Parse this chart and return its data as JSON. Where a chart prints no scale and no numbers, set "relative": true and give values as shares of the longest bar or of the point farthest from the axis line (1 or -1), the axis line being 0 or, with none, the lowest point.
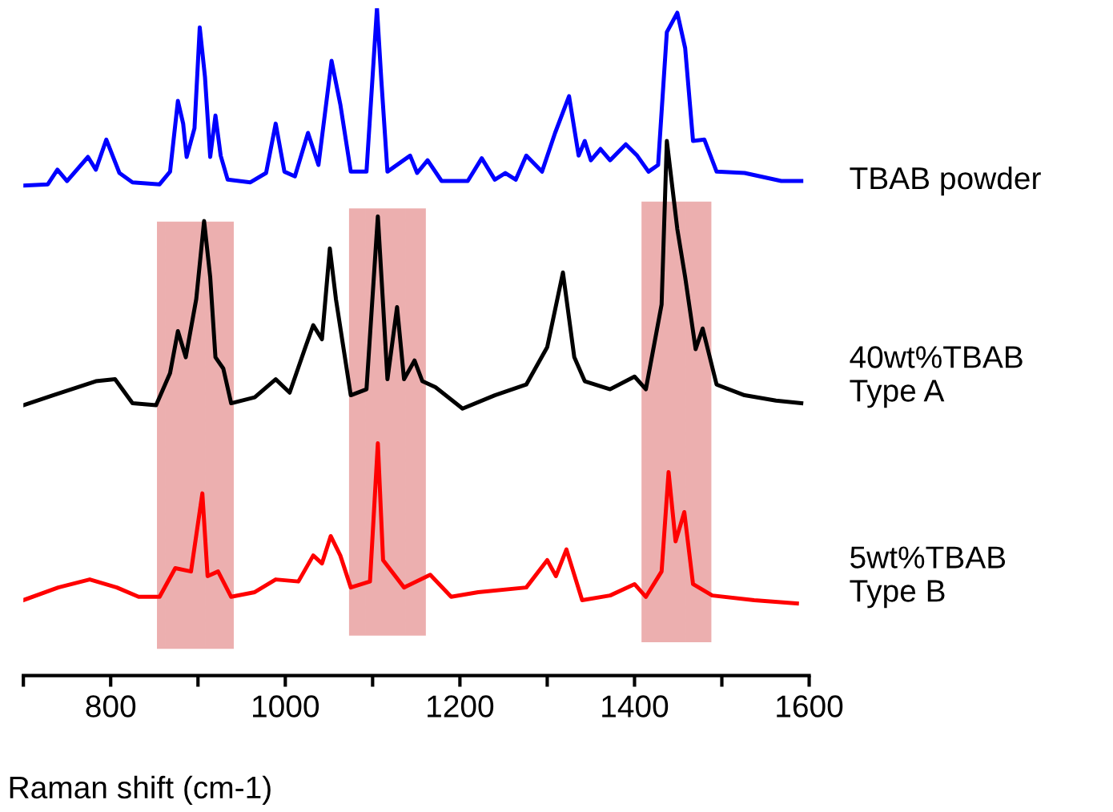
{
  "chart_data": {
    "type": "line",
    "relative": true,
    "xlabel": "Raman shift (cm-1)",
    "xlim": [
      700,
      1600
    ],
    "xticks": [
      {
        "value": 700,
        "label": null
      },
      800,
      {
        "value": 900,
        "label": null
      },
      1000,
      {
        "value": 1100,
        "label": null
      },
      1200,
      {
        "value": 1300,
        "label": null
      },
      1400,
      {
        "value": 1500,
        "label": null
      },
      1600
    ],
    "grid": false,
    "legend": false,
    "marker": "none",
    "line_style": "solid",
    "bands": [
      {
        "axis": "x",
        "from": 853,
        "to": 941,
        "color": "#e07a7a"
      },
      {
        "axis": "x",
        "from": 1073,
        "to": 1161,
        "color": "#e07a7a"
      },
      {
        "axis": "x",
        "from": 1408,
        "to": 1488,
        "color": "#e07a7a"
      }
    ],
    "series": [
      {
        "name": "TBAB powder",
        "color": "#0000ff",
        "x": [
          700,
          728,
          739,
          750,
          774,
          783,
          795,
          810,
          825,
          856,
          868,
          877,
          883,
          887,
          896,
          902,
          908,
          914,
          920,
          926,
          934,
          960,
          978,
          989,
          999,
          1011,
          1026,
          1038,
          1053,
          1063,
          1075,
          1093,
          1105,
          1110,
          1117,
          1143,
          1151,
          1163,
          1179,
          1209,
          1225,
          1240,
          1252,
          1264,
          1276,
          1294,
          1309,
          1325,
          1336,
          1343,
          1350,
          1361,
          1372,
          1390,
          1403,
          1416,
          1427,
          1437,
          1449,
          1458,
          1467,
          1480,
          1494,
          1526,
          1568,
          1591
        ],
        "values": [
          0.734,
          0.736,
          0.758,
          0.741,
          0.777,
          0.758,
          0.803,
          0.753,
          0.739,
          0.736,
          0.755,
          0.861,
          0.827,
          0.777,
          0.82,
          0.971,
          0.897,
          0.777,
          0.839,
          0.779,
          0.743,
          0.739,
          0.753,
          0.827,
          0.755,
          0.748,
          0.813,
          0.765,
          0.921,
          0.856,
          0.755,
          0.755,
          1.0,
          0.892,
          0.755,
          0.779,
          0.753,
          0.772,
          0.741,
          0.741,
          0.775,
          0.743,
          0.753,
          0.743,
          0.779,
          0.755,
          0.813,
          0.868,
          0.779,
          0.801,
          0.772,
          0.789,
          0.772,
          0.796,
          0.779,
          0.755,
          0.765,
          0.964,
          0.993,
          0.94,
          0.801,
          0.803,
          0.755,
          0.753,
          0.741,
          0.741
        ]
      },
      {
        "name": "40wt%TBAB\nType A",
        "color": "#000000",
        "x": [
          700,
          734,
          783,
          805,
          825,
          852,
          868,
          877,
          886,
          898,
          907,
          914,
          920,
          929,
          938,
          965,
          989,
          1005,
          1023,
          1032,
          1042,
          1051,
          1058,
          1075,
          1093,
          1099,
          1106,
          1112,
          1117,
          1128,
          1136,
          1148,
          1157,
          1172,
          1203,
          1240,
          1276,
          1300,
          1318,
          1331,
          1343,
          1372,
          1400,
          1413,
          1431,
          1437,
          1449,
          1458,
          1470,
          1478,
          1494,
          1526,
          1562,
          1591
        ],
        "values": [
          0.405,
          0.42,
          0.441,
          0.444,
          0.408,
          0.405,
          0.453,
          0.516,
          0.477,
          0.564,
          0.681,
          0.597,
          0.477,
          0.46,
          0.408,
          0.417,
          0.444,
          0.424,
          0.492,
          0.525,
          0.504,
          0.64,
          0.564,
          0.42,
          0.429,
          0.549,
          0.688,
          0.556,
          0.444,
          0.552,
          0.444,
          0.472,
          0.441,
          0.432,
          0.4,
          0.42,
          0.436,
          0.492,
          0.604,
          0.477,
          0.441,
          0.429,
          0.448,
          0.429,
          0.556,
          0.801,
          0.669,
          0.597,
          0.489,
          0.52,
          0.436,
          0.42,
          0.412,
          0.408
        ]
      },
      {
        "name": "5wt%TBAB\nType B",
        "color": "#ff0000",
        "x": [
          700,
          740,
          776,
          807,
          832,
          856,
          874,
          892,
          905,
          911,
          923,
          938,
          965,
          989,
          1015,
          1032,
          1042,
          1052,
          1063,
          1075,
          1097,
          1106,
          1112,
          1136,
          1166,
          1190,
          1221,
          1276,
          1300,
          1310,
          1322,
          1340,
          1372,
          1400,
          1413,
          1431,
          1439,
          1447,
          1457,
          1467,
          1489,
          1537,
          1586
        ],
        "values": [
          0.113,
          0.132,
          0.144,
          0.132,
          0.118,
          0.118,
          0.161,
          0.156,
          0.273,
          0.149,
          0.156,
          0.118,
          0.125,
          0.144,
          0.141,
          0.18,
          0.168,
          0.209,
          0.18,
          0.132,
          0.141,
          0.348,
          0.173,
          0.132,
          0.151,
          0.118,
          0.125,
          0.132,
          0.173,
          0.149,
          0.189,
          0.113,
          0.12,
          0.137,
          0.118,
          0.156,
          0.305,
          0.201,
          0.245,
          0.137,
          0.12,
          0.113,
          0.108
        ]
      }
    ]
  }
}
